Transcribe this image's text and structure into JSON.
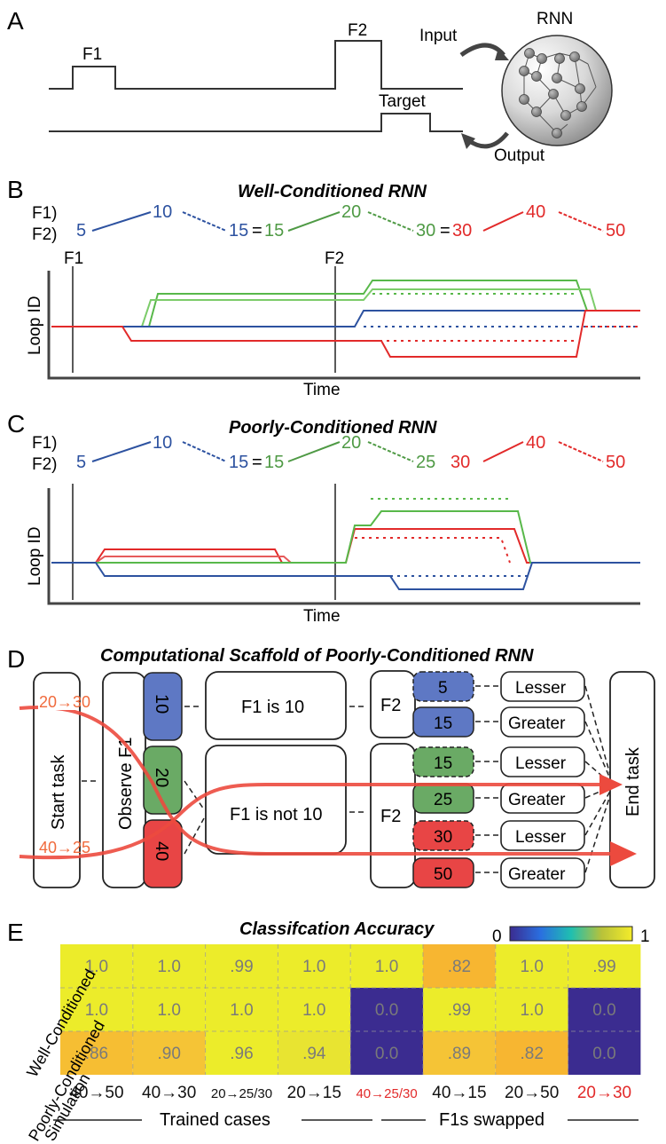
{
  "panel_a": {
    "letter": "A",
    "f1": "F1",
    "f2": "F2",
    "target": "Target",
    "rnn": "RNN",
    "input": "Input",
    "output": "Output"
  },
  "panel_b": {
    "letter": "B",
    "title": "Well-Conditioned RNN",
    "row_f1": "F1)",
    "row_f2": "F2)",
    "vals": {
      "v5": "5",
      "v10": "10",
      "v15a": "15",
      "eq1": "=",
      "v15b": "15",
      "v20": "20",
      "v30a": "30",
      "eq2": "=",
      "v30b": "30",
      "v40": "40",
      "v50": "50"
    },
    "f1_marker": "F1",
    "f2_marker": "F2",
    "ylabel": "Loop ID",
    "xlabel": "Time"
  },
  "panel_c": {
    "letter": "C",
    "title": "Poorly-Conditioned RNN",
    "row_f1": "F1)",
    "row_f2": "F2)",
    "vals": {
      "v5": "5",
      "v10": "10",
      "v15a": "15",
      "eq1": "=",
      "v15b": "15",
      "v20": "20",
      "v25": "25",
      "v30": "30",
      "v40": "40",
      "v50": "50"
    },
    "ylabel": "Loop ID",
    "xlabel": "Time"
  },
  "panel_d": {
    "letter": "D",
    "title": "Computational Scaffold of Poorly-Conditioned RNN",
    "start_task": "Start task",
    "observe_f1": "Observe F1",
    "f1_values": [
      "10",
      "20",
      "40"
    ],
    "f1_is_10": "F1 is 10",
    "f1_not_10": "F1 is not 10",
    "f2": "F2",
    "f2_values": [
      "5",
      "15",
      "15",
      "25",
      "30",
      "50"
    ],
    "decisions": [
      "Lesser",
      "Greater",
      "Lesser",
      "Greater",
      "Lesser",
      "Greater"
    ],
    "end_task": "End task",
    "path1": "20→30",
    "path2": "40→25"
  },
  "panel_e": {
    "letter": "E",
    "title": "Classifcation Accuracy",
    "colorbar_min": "0",
    "colorbar_max": "1",
    "rows": [
      "Well-Conditioned",
      "Poorly-Conditioned",
      "Simulation"
    ],
    "columns": [
      "40→50",
      "40→30",
      "20→25/30",
      "20→15",
      "40→25/30",
      "40→15",
      "20→50",
      "20→30"
    ],
    "values": [
      [
        ".1.0",
        ".1.0",
        ".99",
        "1.0",
        "1.0",
        ".82",
        ".1.0",
        ".99"
      ],
      [
        "1.0",
        "1.0",
        "1.0",
        "1.0",
        "0.0",
        ".99",
        "1.0",
        "0.0"
      ],
      [
        ".86",
        ".90",
        ".96",
        ".94",
        "0.0",
        ".89",
        ".82",
        "0.0"
      ]
    ],
    "numeric_values": [
      [
        1.0,
        1.0,
        0.99,
        1.0,
        1.0,
        0.82,
        1.0,
        0.99
      ],
      [
        1.0,
        1.0,
        1.0,
        1.0,
        0.0,
        0.99,
        1.0,
        0.0
      ],
      [
        0.86,
        0.9,
        0.96,
        0.94,
        0.0,
        0.89,
        0.82,
        0.0
      ]
    ],
    "group1": "Trained cases",
    "group2": "F1s swapped"
  },
  "chart_data": {
    "type": "heatmap",
    "title": "Classifcation Accuracy",
    "rows": [
      "Well-Conditioned",
      "Poorly-Conditioned",
      "Simulation"
    ],
    "columns": [
      "40→50",
      "40→30",
      "20→25/30",
      "20→15",
      "40→25/30",
      "40→15",
      "20→50",
      "20→30"
    ],
    "values": [
      [
        1.0,
        1.0,
        0.99,
        1.0,
        1.0,
        0.82,
        1.0,
        0.99
      ],
      [
        1.0,
        1.0,
        1.0,
        1.0,
        0.0,
        0.99,
        1.0,
        0.0
      ],
      [
        0.86,
        0.9,
        0.96,
        0.94,
        0.0,
        0.89,
        0.82,
        0.0
      ]
    ],
    "range": [
      0,
      1
    ]
  },
  "colors": {
    "blue": "#2d52a0",
    "green": "#4f9a45",
    "red": "#e22a2a",
    "orange": "#f06a3c",
    "yellow": "#ecec2a",
    "navy": "#3b2c90",
    "amber": "#f7c233"
  }
}
